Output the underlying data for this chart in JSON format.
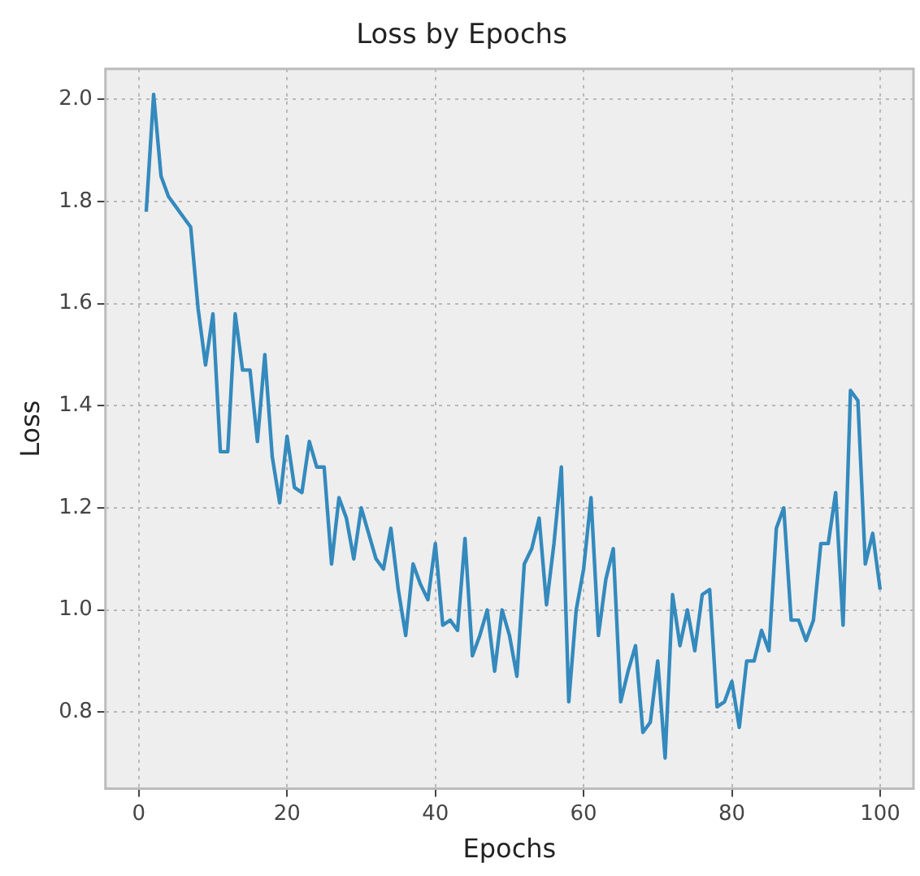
{
  "chart_data": {
    "type": "line",
    "title": "Loss by Epochs",
    "xlabel": "Epochs",
    "ylabel": "Loss",
    "x": [
      1,
      2,
      3,
      4,
      5,
      6,
      7,
      8,
      9,
      10,
      11,
      12,
      13,
      14,
      15,
      16,
      17,
      18,
      19,
      20,
      21,
      22,
      23,
      24,
      25,
      26,
      27,
      28,
      29,
      30,
      31,
      32,
      33,
      34,
      35,
      36,
      37,
      38,
      39,
      40,
      41,
      42,
      43,
      44,
      45,
      46,
      47,
      48,
      49,
      50,
      51,
      52,
      53,
      54,
      55,
      56,
      57,
      58,
      59,
      60,
      61,
      62,
      63,
      64,
      65,
      66,
      67,
      68,
      69,
      70,
      71,
      72,
      73,
      74,
      75,
      76,
      77,
      78,
      79,
      80,
      81,
      82,
      83,
      84,
      85,
      86,
      87,
      88,
      89,
      90,
      91,
      92,
      93,
      94,
      95,
      96,
      97,
      98,
      99,
      100
    ],
    "series": [
      {
        "color": "#348abd",
        "values": [
          1.78,
          2.01,
          1.85,
          1.81,
          1.79,
          1.77,
          1.75,
          1.59,
          1.48,
          1.58,
          1.31,
          1.31,
          1.58,
          1.47,
          1.47,
          1.33,
          1.5,
          1.3,
          1.21,
          1.34,
          1.24,
          1.23,
          1.33,
          1.28,
          1.28,
          1.09,
          1.22,
          1.18,
          1.1,
          1.2,
          1.15,
          1.1,
          1.08,
          1.16,
          1.04,
          0.95,
          1.09,
          1.05,
          1.02,
          1.13,
          0.97,
          0.98,
          0.96,
          1.14,
          0.91,
          0.95,
          1.0,
          0.88,
          1.0,
          0.95,
          0.87,
          1.09,
          1.12,
          1.18,
          1.01,
          1.13,
          1.28,
          0.82,
          1.0,
          1.08,
          1.22,
          0.95,
          1.06,
          1.12,
          0.82,
          0.88,
          0.93,
          0.76,
          0.78,
          0.9,
          0.71,
          1.03,
          0.93,
          1.0,
          0.92,
          1.03,
          1.04,
          0.81,
          0.82,
          0.86,
          0.77,
          0.9,
          0.9,
          0.96,
          0.92,
          1.16,
          1.2,
          0.98,
          0.98,
          0.94,
          0.98,
          1.13,
          1.13,
          1.23,
          0.97,
          1.43,
          1.41,
          1.09,
          1.15,
          1.04
        ]
      }
    ],
    "xlim": [
      -4.5,
      104.5
    ],
    "ylim": [
      0.65,
      2.06
    ],
    "xticks": [
      0,
      20,
      40,
      60,
      80,
      100
    ],
    "yticks": [
      {
        "value": 0.8,
        "label": "0.8"
      },
      {
        "value": 1.0,
        "label": "1.0"
      },
      {
        "value": 1.2,
        "label": "1.2"
      },
      {
        "value": 1.4,
        "label": "1.4"
      },
      {
        "value": 1.6,
        "label": "1.6"
      },
      {
        "value": 1.8,
        "label": "1.8"
      },
      {
        "value": 2.0,
        "label": "2.0"
      }
    ],
    "grid": true,
    "line_style": "solid",
    "marker": "none"
  }
}
